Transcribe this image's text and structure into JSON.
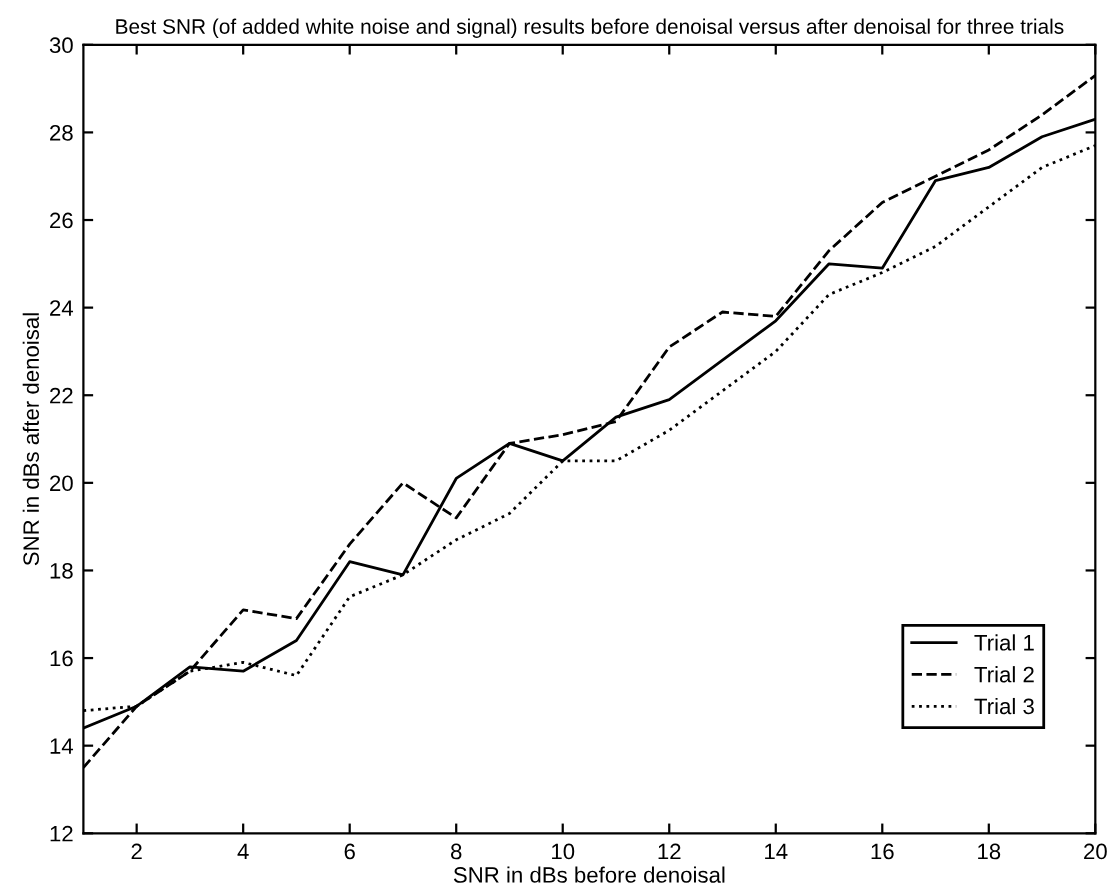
{
  "chart_data": {
    "type": "line",
    "title": "Best SNR (of added white noise and signal) results before denoisal versus after denoisal for three trials",
    "xlabel": "SNR in dBs before denoisal",
    "ylabel": "SNR in dBs after denoisal",
    "x": [
      1,
      2,
      3,
      4,
      5,
      6,
      7,
      8,
      9,
      10,
      11,
      12,
      13,
      14,
      15,
      16,
      17,
      18,
      19,
      20
    ],
    "series": [
      {
        "name": "Trial 1",
        "color": "#000000",
        "line_style": "solid",
        "values": [
          14.4,
          14.9,
          15.8,
          15.7,
          16.4,
          18.2,
          17.9,
          20.1,
          20.9,
          20.5,
          21.5,
          21.9,
          22.8,
          23.7,
          25.0,
          24.9,
          26.9,
          27.2,
          27.9,
          28.3
        ]
      },
      {
        "name": "Trial 2",
        "color": "#000000",
        "line_style": "dashed",
        "values": [
          13.5,
          14.9,
          15.7,
          17.1,
          16.9,
          18.6,
          20.0,
          19.2,
          20.9,
          21.1,
          21.4,
          23.1,
          23.9,
          23.8,
          25.3,
          26.4,
          27.0,
          27.6,
          28.4,
          29.3
        ]
      },
      {
        "name": "Trial 3",
        "color": "#000000",
        "line_style": "dotted",
        "values": [
          14.8,
          14.9,
          15.7,
          15.9,
          15.6,
          17.4,
          17.9,
          18.7,
          19.3,
          20.5,
          20.5,
          21.2,
          22.1,
          23.0,
          24.3,
          24.8,
          25.4,
          26.3,
          27.2,
          27.7
        ]
      }
    ],
    "xlim": [
      1,
      20
    ],
    "xticks": [
      2,
      4,
      6,
      8,
      10,
      12,
      14,
      16,
      18,
      20
    ],
    "ylim": [
      12,
      30
    ],
    "yticks": [
      12,
      14,
      16,
      18,
      20,
      22,
      24,
      26,
      28,
      30
    ],
    "grid": false,
    "legend": "bottom right",
    "marker": "none"
  }
}
